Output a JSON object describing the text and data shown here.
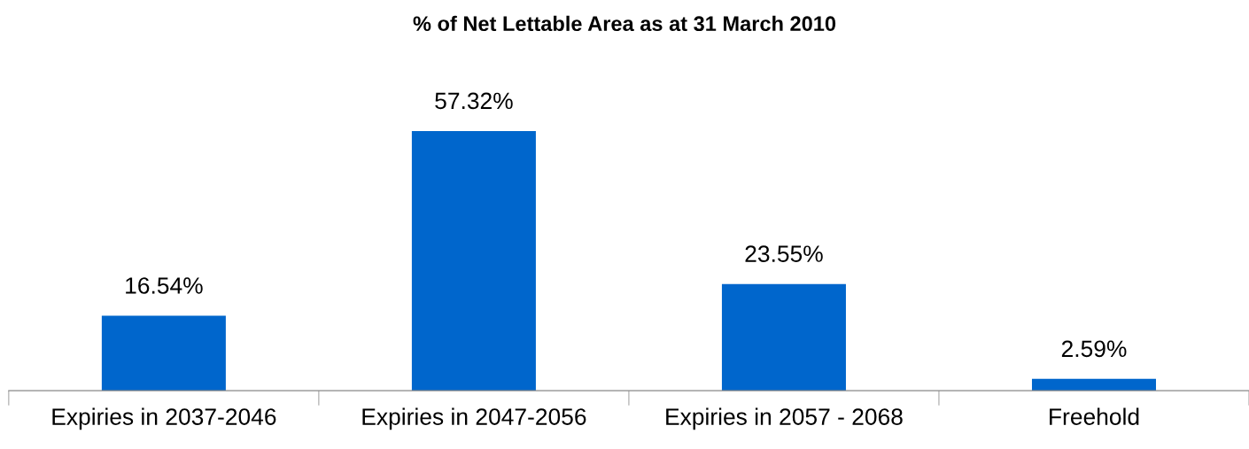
{
  "chart_data": {
    "type": "bar",
    "title": "% of Net Lettable Area as at 31 March 2010",
    "categories": [
      "Expiries in 2037-2046",
      "Expiries in 2047-2056",
      "Expiries in 2057 - 2068",
      "Freehold"
    ],
    "values": [
      16.54,
      57.32,
      23.55,
      2.59
    ],
    "value_labels": [
      "16.54%",
      "57.32%",
      "23.55%",
      "2.59%"
    ],
    "color": "#0066cc",
    "grid": false,
    "legend": false,
    "tick_labels": "x"
  }
}
